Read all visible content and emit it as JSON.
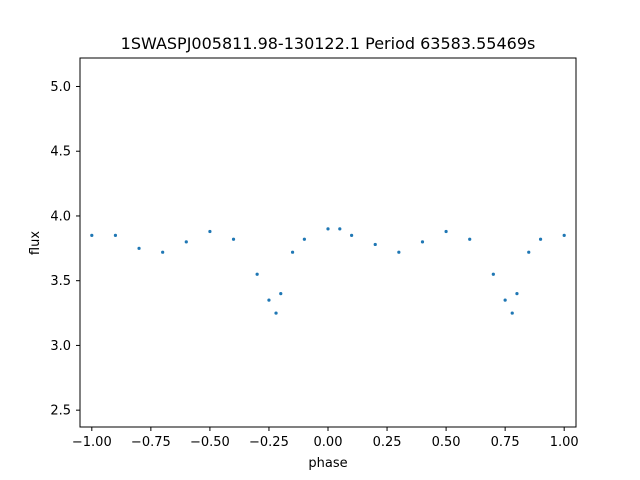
{
  "chart_data": {
    "type": "scatter",
    "title": "1SWASPJ005811.98-130122.1 Period 63583.55469s",
    "xlabel": "phase",
    "ylabel": "flux",
    "xlim": [
      -1.05,
      1.05
    ],
    "ylim": [
      2.37,
      5.22
    ],
    "x_ticks": [
      -1.0,
      -0.75,
      -0.5,
      -0.25,
      0.0,
      0.25,
      0.5,
      0.75,
      1.0
    ],
    "x_tick_labels": [
      "−1.00",
      "−0.75",
      "−0.50",
      "−0.25",
      "0.00",
      "0.25",
      "0.50",
      "0.75",
      "1.00"
    ],
    "y_ticks": [
      2.5,
      3.0,
      3.5,
      4.0,
      4.5,
      5.0
    ],
    "y_tick_labels": [
      "2.5",
      "3.0",
      "3.5",
      "4.0",
      "4.5",
      "5.0"
    ],
    "grid": false,
    "marker_color": "#1f77b4",
    "series": [
      {
        "phase": [
          -1.0,
          -0.9,
          -0.8,
          -0.7,
          -0.6,
          -0.5,
          -0.4,
          -0.3,
          -0.25,
          -0.22,
          -0.2,
          -0.15,
          -0.1,
          0.0,
          0.05,
          0.1,
          0.2,
          0.3,
          0.4,
          0.5,
          0.6,
          0.7,
          0.75,
          0.78,
          0.8,
          0.85,
          0.9,
          1.0
        ],
        "flux": [
          3.85,
          3.85,
          3.75,
          3.72,
          3.8,
          3.88,
          3.82,
          3.55,
          3.35,
          3.25,
          3.4,
          3.72,
          3.82,
          3.9,
          3.9,
          3.85,
          3.78,
          3.72,
          3.8,
          3.88,
          3.82,
          3.55,
          3.35,
          3.25,
          3.4,
          3.72,
          3.82,
          3.85
        ]
      }
    ]
  }
}
